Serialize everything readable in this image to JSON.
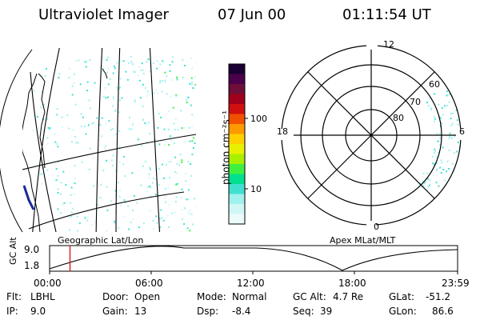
{
  "header": {
    "instrument": "Ultraviolet Imager",
    "date": "07 Jun 00",
    "time": "01:11:54 UT"
  },
  "colorbar": {
    "label": "photon cm⁻²s⁻¹",
    "ticks": [
      "100",
      "10"
    ],
    "colors": [
      "#1a0033",
      "#4b004b",
      "#6e0f3a",
      "#a0001c",
      "#d01010",
      "#f05000",
      "#ff9900",
      "#ffd000",
      "#e8f000",
      "#a8f000",
      "#40f040",
      "#00e090",
      "#40e0d0",
      "#a0f0ee",
      "#d0f7f5",
      "#ebfbfa"
    ]
  },
  "geo_map": {
    "label": "Geographic Lat/Lon"
  },
  "polar_plot": {
    "label": "Apex MLat/MLT",
    "mlt_labels": {
      "top": "12",
      "left": "18",
      "right": "6",
      "bottom": "0"
    },
    "lat_labels": [
      "60",
      "70",
      "80"
    ]
  },
  "timeline": {
    "ylabel": "GC Alt",
    "yticks": [
      "9.0",
      "1.8"
    ],
    "xticks": [
      "00:00",
      "06:00",
      "12:00",
      "18:00",
      "23:59"
    ],
    "marker_time_hours": 1.2,
    "marker_color": "#e02020"
  },
  "status": {
    "flt_label": "Flt:",
    "flt_value": "LBHL",
    "ip_label": "IP:",
    "ip_value": "9.0",
    "door_label": "Door:",
    "door_value": "Open",
    "gain_label": "Gain:",
    "gain_value": "13",
    "mode_label": "Mode:",
    "mode_value": "Normal",
    "dsp_label": "Dsp:",
    "dsp_value": "-8.4",
    "gcalt_label": "GC Alt:",
    "gcalt_value": "4.7 Re",
    "seq_label": "Seq:",
    "seq_value": "39",
    "glat_label": "GLat:",
    "glat_value": "-51.2",
    "glon_label": "GLon:",
    "glon_value": "86.6"
  }
}
